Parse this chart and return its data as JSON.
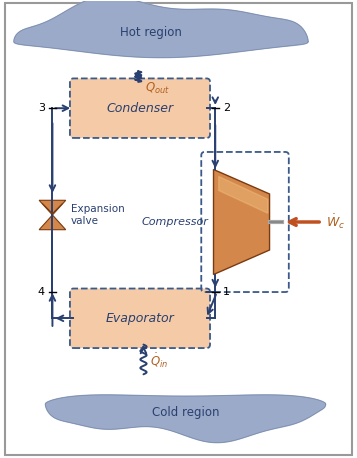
{
  "fig_width": 3.57,
  "fig_height": 4.58,
  "bg_color": "#ffffff",
  "border_color": "#999999",
  "box_fill": "#f5cba7",
  "box_edge": "#3a5a8a",
  "cloud_color": "#9aaac8",
  "line_color": "#2a4070",
  "compressor_color": "#d4874a",
  "compressor_color2": "#e8a060",
  "wc_arrow_color": "#c05020",
  "text_color": "#2a4070",
  "label_color": "#b06020",
  "hot_region_text": "Hot region",
  "cold_region_text": "Cold region",
  "condenser_text": "Condenser",
  "evaporator_text": "Evaporator",
  "compressor_text": "Compressor",
  "expansion_text1": "Expansion",
  "expansion_text2": "valve"
}
